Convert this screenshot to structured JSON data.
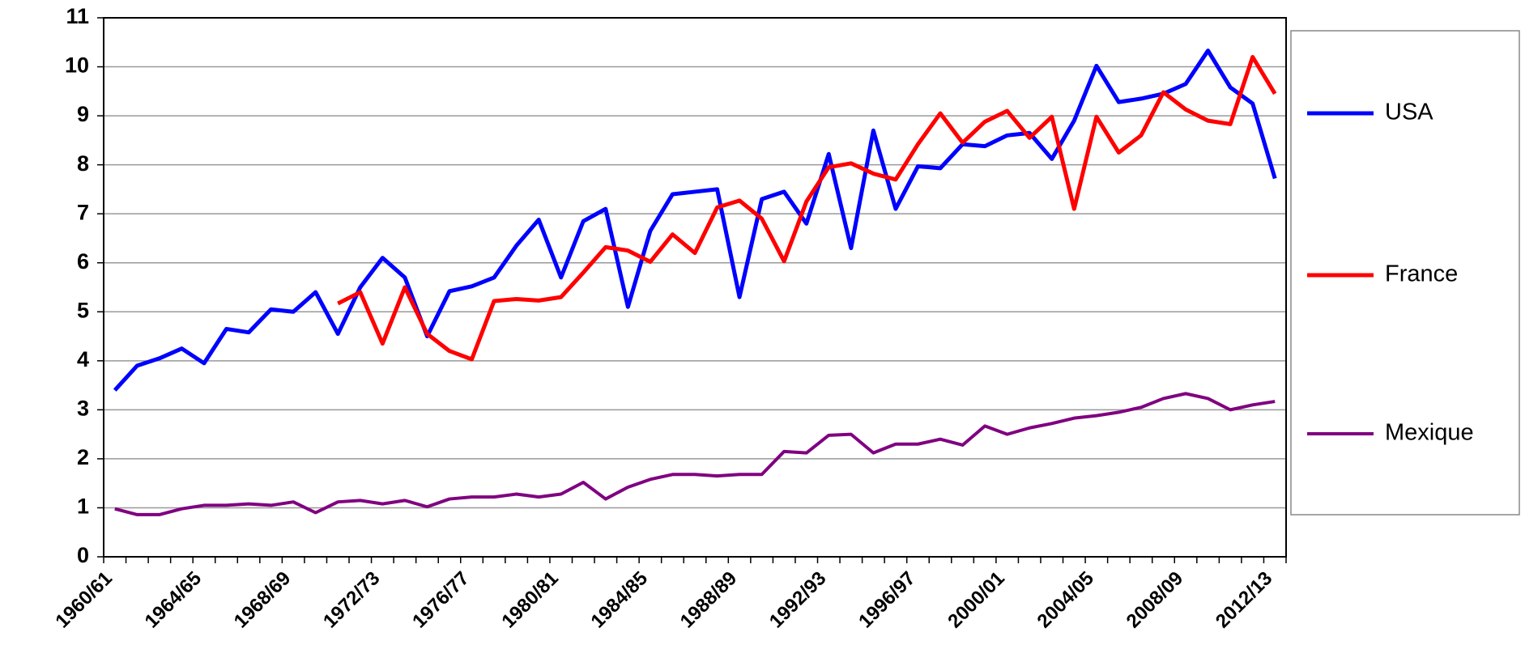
{
  "chart_data": {
    "type": "line",
    "categories": [
      "1960/61",
      null,
      null,
      null,
      "1964/65",
      null,
      null,
      null,
      "1968/69",
      null,
      null,
      null,
      "1972/73",
      null,
      null,
      null,
      "1976/77",
      null,
      null,
      null,
      "1980/81",
      null,
      null,
      null,
      "1984/85",
      null,
      null,
      null,
      "1988/89",
      null,
      null,
      null,
      "1992/93",
      null,
      null,
      null,
      "1996/97",
      null,
      null,
      null,
      "2000/01",
      null,
      null,
      null,
      "2004/05",
      null,
      null,
      null,
      "2008/09",
      null,
      null,
      null,
      "2012/13"
    ],
    "series": [
      {
        "name": "USA",
        "color": "#0000ff",
        "values": [
          3.4,
          3.9,
          4.05,
          4.25,
          3.95,
          4.65,
          4.58,
          5.05,
          5.0,
          5.4,
          4.55,
          5.5,
          6.1,
          5.7,
          4.5,
          5.42,
          5.52,
          5.7,
          6.35,
          6.88,
          5.7,
          6.85,
          7.1,
          5.1,
          6.65,
          7.4,
          7.45,
          7.5,
          5.3,
          7.3,
          7.45,
          6.8,
          8.22,
          6.3,
          8.7,
          7.1,
          7.97,
          7.93,
          8.42,
          8.38,
          8.6,
          8.65,
          8.12,
          8.9,
          10.02,
          9.28,
          9.35,
          9.45,
          9.65,
          10.33,
          9.58,
          9.25,
          7.72
        ]
      },
      {
        "name": "France",
        "color": "#ff0000",
        "values": [
          null,
          null,
          null,
          null,
          null,
          null,
          null,
          null,
          null,
          null,
          5.17,
          5.4,
          4.35,
          5.5,
          4.55,
          4.2,
          4.03,
          5.22,
          5.26,
          5.23,
          5.3,
          5.8,
          6.32,
          6.25,
          6.02,
          6.58,
          6.2,
          7.13,
          7.27,
          6.9,
          6.03,
          7.25,
          7.95,
          8.03,
          7.82,
          7.7,
          8.42,
          9.05,
          8.45,
          8.88,
          9.1,
          8.55,
          8.98,
          7.1,
          8.98,
          8.25,
          8.6,
          9.48,
          9.13,
          8.9,
          8.83,
          10.2,
          9.45
        ]
      },
      {
        "name": "Mexique",
        "color": "#800080",
        "values": [
          0.98,
          0.86,
          0.86,
          0.98,
          1.05,
          1.05,
          1.08,
          1.05,
          1.12,
          0.9,
          1.12,
          1.15,
          1.08,
          1.15,
          1.02,
          1.18,
          1.22,
          1.22,
          1.28,
          1.22,
          1.28,
          1.52,
          1.18,
          1.42,
          1.58,
          1.68,
          1.68,
          1.65,
          1.68,
          1.68,
          2.15,
          2.12,
          2.48,
          2.5,
          2.12,
          2.3,
          2.3,
          2.4,
          2.28,
          2.67,
          2.5,
          2.63,
          2.72,
          2.83,
          2.88,
          2.95,
          3.05,
          3.23,
          3.33,
          3.23,
          3.0,
          3.1,
          3.17
        ]
      }
    ],
    "ylim": [
      0,
      11
    ],
    "yticks": [
      0,
      1,
      2,
      3,
      4,
      5,
      6,
      7,
      8,
      9,
      10,
      11
    ],
    "grid": true,
    "legend": "right"
  }
}
